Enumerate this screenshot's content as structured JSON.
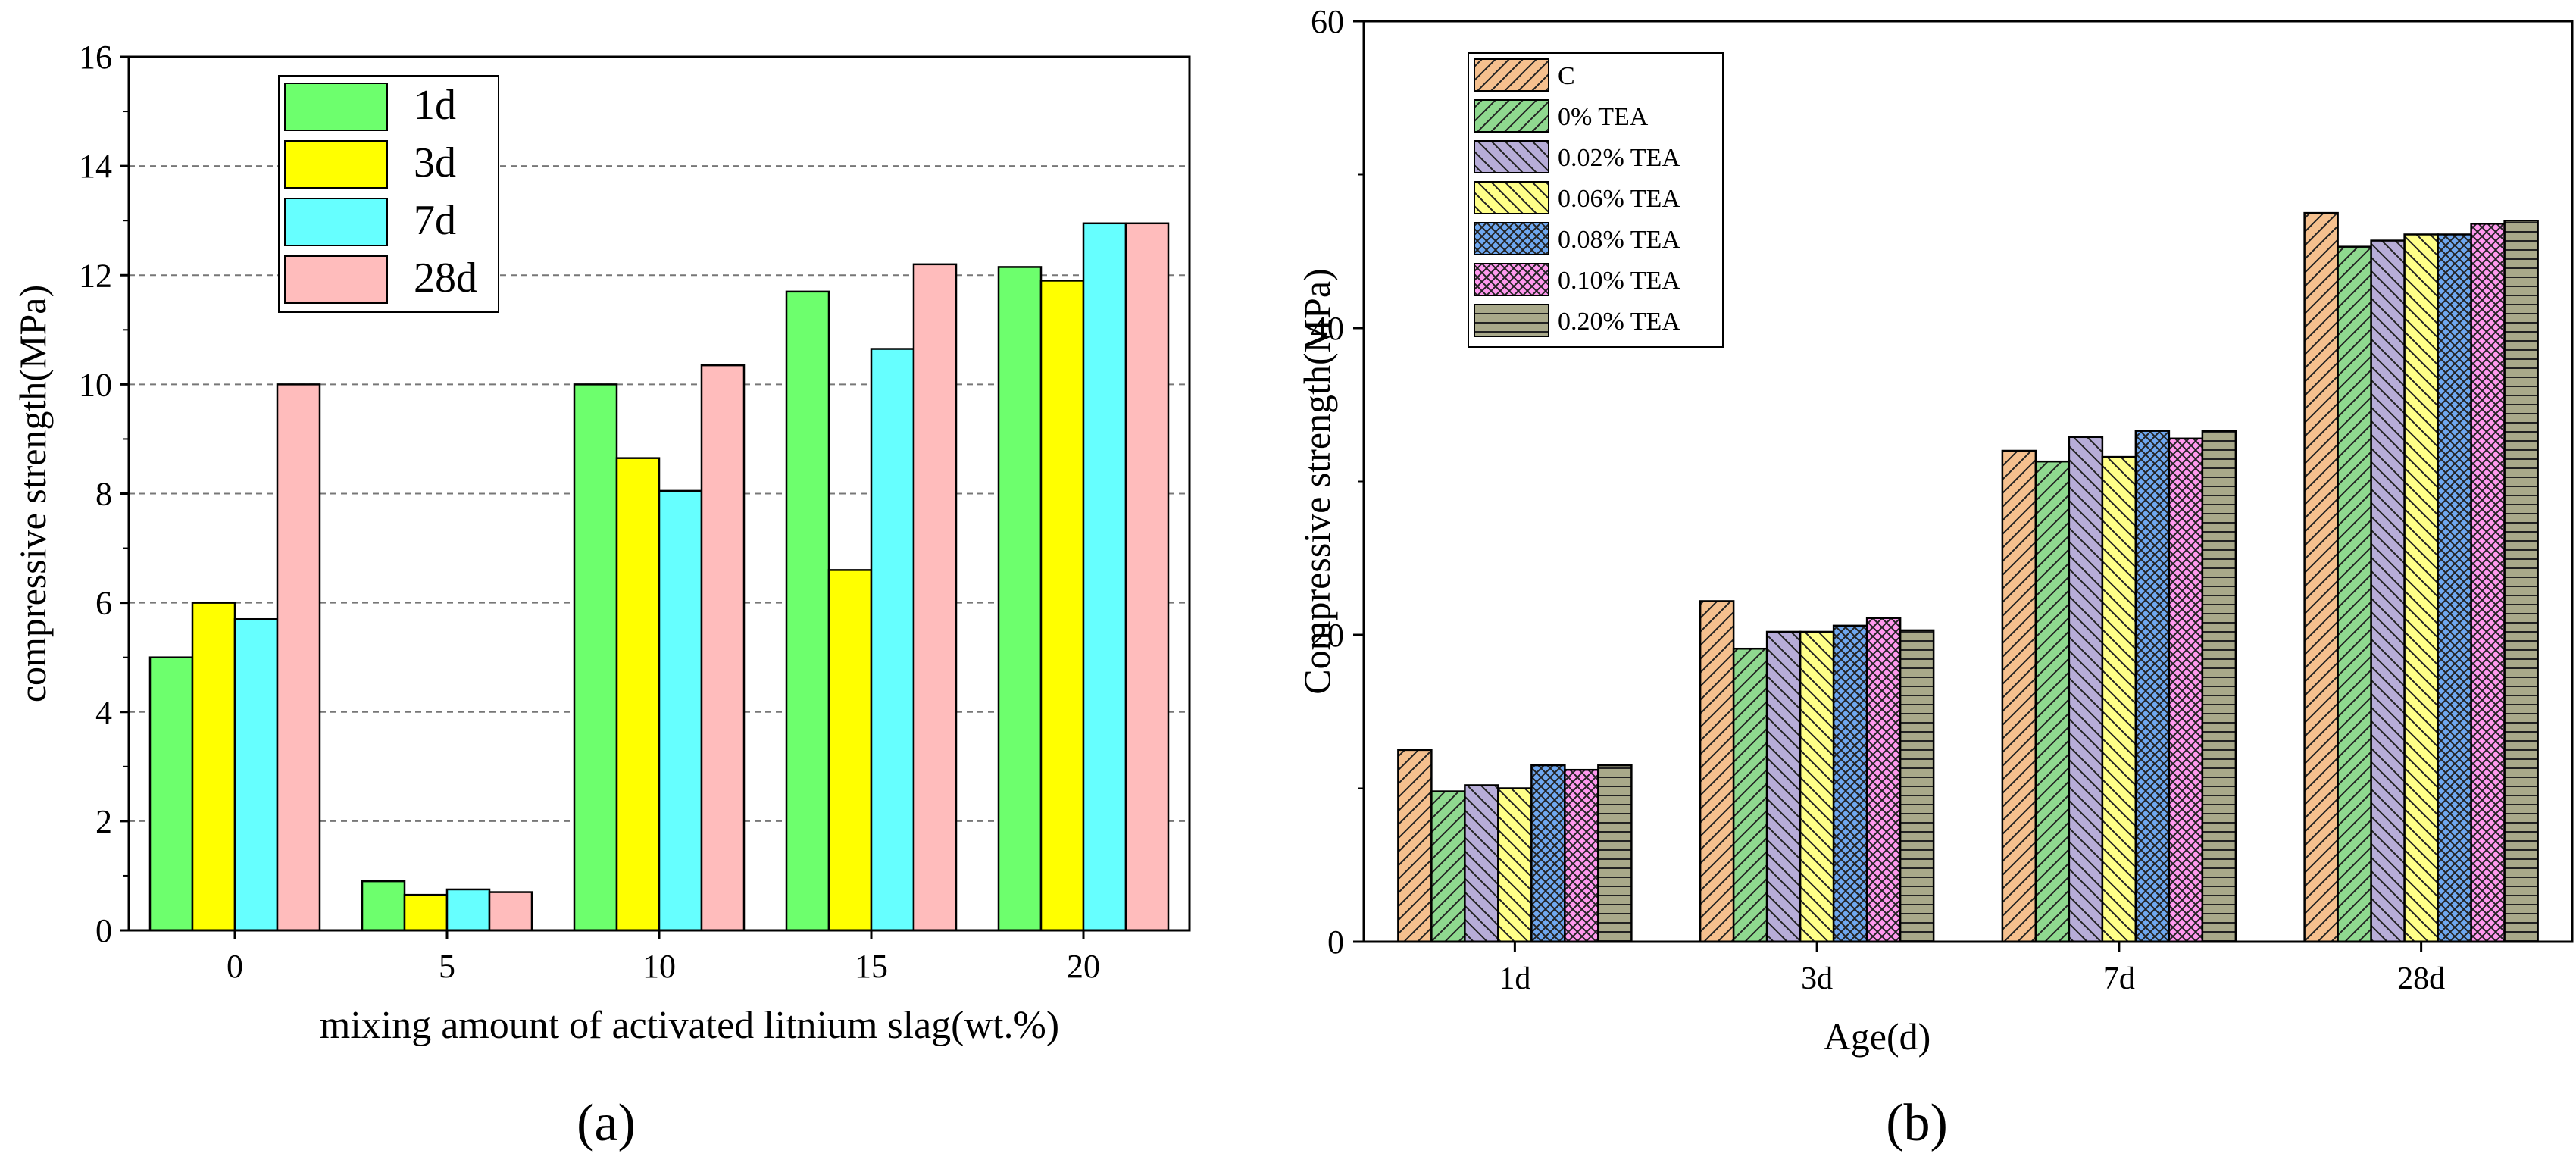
{
  "chart_data": [
    {
      "id": "a",
      "type": "bar",
      "panel_label": "(a)",
      "xlabel": "mixing amount of activated litnium slag(wt.%)",
      "ylabel": "compressive strength(MPa)",
      "ylim": [
        0,
        16
      ],
      "yticks": [
        "0",
        "2",
        "4",
        "6",
        "8",
        "10",
        "12",
        "14",
        "16"
      ],
      "grid": "dashed-horizontal",
      "legend_position": "top-left",
      "categories": [
        "0",
        "5",
        "10",
        "15",
        "20"
      ],
      "series": [
        {
          "name": "1d",
          "color": "#6dff6d",
          "values": [
            5.0,
            0.9,
            10.0,
            11.7,
            12.15
          ]
        },
        {
          "name": "3d",
          "color": "#ffff00",
          "values": [
            6.0,
            0.65,
            8.65,
            6.6,
            11.9
          ]
        },
        {
          "name": "7d",
          "color": "#66ffff",
          "values": [
            5.7,
            0.75,
            8.05,
            10.65,
            12.95
          ]
        },
        {
          "name": "28d",
          "color": "#ffbcbc",
          "values": [
            10.0,
            0.7,
            10.35,
            12.2,
            12.95
          ]
        }
      ]
    },
    {
      "id": "b",
      "type": "bar",
      "panel_label": "(b)",
      "xlabel": "Age(d)",
      "ylabel": "Compressive strength(MPa)",
      "ylim": [
        0,
        60
      ],
      "yticks": [
        "0",
        "20",
        "40",
        "60"
      ],
      "grid": "none",
      "legend_position": "top-left",
      "categories": [
        "1d",
        "3d",
        "7d",
        "28d"
      ],
      "series": [
        {
          "name": "C",
          "color": "#f5c08e",
          "pattern": "diag-right",
          "values": [
            12.5,
            22.2,
            32.0,
            47.5
          ]
        },
        {
          "name": "0% TEA",
          "color": "#8fd98f",
          "pattern": "diag-right",
          "values": [
            9.8,
            19.1,
            31.3,
            45.3
          ]
        },
        {
          "name": "0.02% TEA",
          "color": "#b7add8",
          "pattern": "diag-left",
          "values": [
            10.2,
            20.2,
            32.9,
            45.7
          ]
        },
        {
          "name": "0.06% TEA",
          "color": "#ffff88",
          "pattern": "diag-left",
          "values": [
            10.0,
            20.2,
            31.6,
            46.1
          ]
        },
        {
          "name": "0.08% TEA",
          "color": "#6fa8f0",
          "pattern": "cross",
          "values": [
            11.5,
            20.6,
            33.3,
            46.1
          ]
        },
        {
          "name": "0.10% TEA",
          "color": "#ff99ee",
          "pattern": "cross",
          "values": [
            11.2,
            21.1,
            32.8,
            46.8
          ]
        },
        {
          "name": "0.20% TEA",
          "color": "#a9a98a",
          "pattern": "horizontal",
          "values": [
            11.5,
            20.3,
            33.3,
            47.0
          ]
        }
      ]
    }
  ]
}
